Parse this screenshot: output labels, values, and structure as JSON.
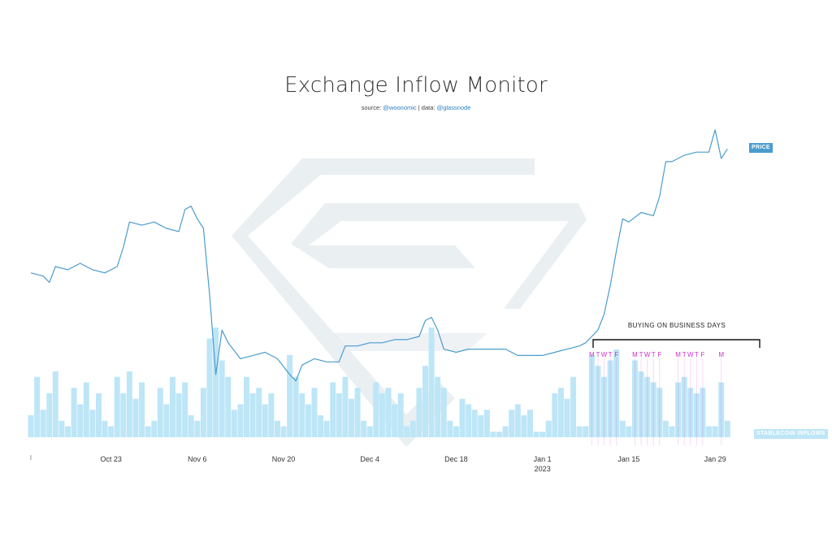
{
  "title": "Exchange Inflow Monitor",
  "source": {
    "prefix": "source: ",
    "author": "@woonomic",
    "separator": " | data: ",
    "data": "@glassnode"
  },
  "colors": {
    "price": "#4a9ccd",
    "inflows": "#bde6f7",
    "weekday_marker": "#cc33cc",
    "watermark": "#e3e9ee"
  },
  "badges": {
    "price": "PRICE",
    "stablecoin": "STABLECOIN INFLOWS"
  },
  "annotation": {
    "label": "BUYING ON BUSINESS DAYS"
  },
  "chart_data": {
    "type": "line",
    "title": "Exchange Inflow Monitor",
    "x_ticks": [
      "Oct 23",
      "Nov 6",
      "Nov 20",
      "Dec 4",
      "Dec 18",
      "Jan 1",
      "Jan 15",
      "Jan 29"
    ],
    "x_tick_year": {
      "tick": "Jan 1",
      "label": "2023"
    },
    "x_range": [
      "2022-10-10",
      "2023-02-03"
    ],
    "grid": false,
    "series": [
      {
        "name": "PRICE",
        "kind": "line",
        "axis": "hidden",
        "points": [
          [
            "2022-10-10",
            19200
          ],
          [
            "2022-10-12",
            19100
          ],
          [
            "2022-10-13",
            18900
          ],
          [
            "2022-10-14",
            19400
          ],
          [
            "2022-10-16",
            19300
          ],
          [
            "2022-10-18",
            19500
          ],
          [
            "2022-10-20",
            19300
          ],
          [
            "2022-10-22",
            19200
          ],
          [
            "2022-10-24",
            19400
          ],
          [
            "2022-10-25",
            20000
          ],
          [
            "2022-10-26",
            20800
          ],
          [
            "2022-10-28",
            20700
          ],
          [
            "2022-10-30",
            20800
          ],
          [
            "2022-11-01",
            20600
          ],
          [
            "2022-11-03",
            20500
          ],
          [
            "2022-11-04",
            21200
          ],
          [
            "2022-11-05",
            21300
          ],
          [
            "2022-11-06",
            20900
          ],
          [
            "2022-11-07",
            20600
          ],
          [
            "2022-11-08",
            18500
          ],
          [
            "2022-11-09",
            16000
          ],
          [
            "2022-11-10",
            17400
          ],
          [
            "2022-11-11",
            17000
          ],
          [
            "2022-11-13",
            16500
          ],
          [
            "2022-11-15",
            16600
          ],
          [
            "2022-11-17",
            16700
          ],
          [
            "2022-11-19",
            16500
          ],
          [
            "2022-11-21",
            16000
          ],
          [
            "2022-11-22",
            15800
          ],
          [
            "2022-11-23",
            16300
          ],
          [
            "2022-11-25",
            16500
          ],
          [
            "2022-11-27",
            16400
          ],
          [
            "2022-11-29",
            16400
          ],
          [
            "2022-11-30",
            16900
          ],
          [
            "2022-12-02",
            16900
          ],
          [
            "2022-12-04",
            17000
          ],
          [
            "2022-12-06",
            17000
          ],
          [
            "2022-12-08",
            17100
          ],
          [
            "2022-12-10",
            17100
          ],
          [
            "2022-12-12",
            17200
          ],
          [
            "2022-12-13",
            17700
          ],
          [
            "2022-12-14",
            17800
          ],
          [
            "2022-12-15",
            17400
          ],
          [
            "2022-12-16",
            16800
          ],
          [
            "2022-12-18",
            16700
          ],
          [
            "2022-12-20",
            16800
          ],
          [
            "2022-12-22",
            16800
          ],
          [
            "2022-12-24",
            16800
          ],
          [
            "2022-12-26",
            16800
          ],
          [
            "2022-12-28",
            16600
          ],
          [
            "2022-12-30",
            16600
          ],
          [
            "2023-01-01",
            16600
          ],
          [
            "2023-01-03",
            16700
          ],
          [
            "2023-01-05",
            16800
          ],
          [
            "2023-01-07",
            16900
          ],
          [
            "2023-01-08",
            17000
          ],
          [
            "2023-01-09",
            17200
          ],
          [
            "2023-01-10",
            17400
          ],
          [
            "2023-01-11",
            17900
          ],
          [
            "2023-01-12",
            18800
          ],
          [
            "2023-01-13",
            19900
          ],
          [
            "2023-01-14",
            20900
          ],
          [
            "2023-01-15",
            20800
          ],
          [
            "2023-01-17",
            21100
          ],
          [
            "2023-01-19",
            21000
          ],
          [
            "2023-01-20",
            21600
          ],
          [
            "2023-01-21",
            22700
          ],
          [
            "2023-01-22",
            22700
          ],
          [
            "2023-01-24",
            22900
          ],
          [
            "2023-01-26",
            23000
          ],
          [
            "2023-01-28",
            23000
          ],
          [
            "2023-01-29",
            23700
          ],
          [
            "2023-01-30",
            22800
          ],
          [
            "2023-01-31",
            23100
          ]
        ]
      },
      {
        "name": "STABLECOIN INFLOWS",
        "kind": "area",
        "axis": "hidden",
        "note": "daily bars, relative height 0-100",
        "points": [
          [
            "2022-10-10",
            20
          ],
          [
            "2022-10-11",
            55
          ],
          [
            "2022-10-12",
            25
          ],
          [
            "2022-10-13",
            40
          ],
          [
            "2022-10-14",
            60
          ],
          [
            "2022-10-15",
            15
          ],
          [
            "2022-10-16",
            10
          ],
          [
            "2022-10-17",
            45
          ],
          [
            "2022-10-18",
            30
          ],
          [
            "2022-10-19",
            50
          ],
          [
            "2022-10-20",
            25
          ],
          [
            "2022-10-21",
            40
          ],
          [
            "2022-10-22",
            15
          ],
          [
            "2022-10-23",
            10
          ],
          [
            "2022-10-24",
            55
          ],
          [
            "2022-10-25",
            40
          ],
          [
            "2022-10-26",
            60
          ],
          [
            "2022-10-27",
            35
          ],
          [
            "2022-10-28",
            50
          ],
          [
            "2022-10-29",
            10
          ],
          [
            "2022-10-30",
            15
          ],
          [
            "2022-10-31",
            45
          ],
          [
            "2022-11-01",
            30
          ],
          [
            "2022-11-02",
            55
          ],
          [
            "2022-11-03",
            40
          ],
          [
            "2022-11-04",
            50
          ],
          [
            "2022-11-05",
            20
          ],
          [
            "2022-11-06",
            15
          ],
          [
            "2022-11-07",
            45
          ],
          [
            "2022-11-08",
            90
          ],
          [
            "2022-11-09",
            100
          ],
          [
            "2022-11-10",
            70
          ],
          [
            "2022-11-11",
            55
          ],
          [
            "2022-11-12",
            25
          ],
          [
            "2022-11-13",
            30
          ],
          [
            "2022-11-14",
            55
          ],
          [
            "2022-11-15",
            40
          ],
          [
            "2022-11-16",
            45
          ],
          [
            "2022-11-17",
            30
          ],
          [
            "2022-11-18",
            40
          ],
          [
            "2022-11-19",
            15
          ],
          [
            "2022-11-20",
            10
          ],
          [
            "2022-11-21",
            75
          ],
          [
            "2022-11-22",
            55
          ],
          [
            "2022-11-23",
            40
          ],
          [
            "2022-11-24",
            30
          ],
          [
            "2022-11-25",
            45
          ],
          [
            "2022-11-26",
            20
          ],
          [
            "2022-11-27",
            15
          ],
          [
            "2022-11-28",
            50
          ],
          [
            "2022-11-29",
            40
          ],
          [
            "2022-11-30",
            55
          ],
          [
            "2022-12-01",
            35
          ],
          [
            "2022-12-02",
            45
          ],
          [
            "2022-12-03",
            15
          ],
          [
            "2022-12-04",
            10
          ],
          [
            "2022-12-05",
            50
          ],
          [
            "2022-12-06",
            40
          ],
          [
            "2022-12-07",
            45
          ],
          [
            "2022-12-08",
            30
          ],
          [
            "2022-12-09",
            40
          ],
          [
            "2022-12-10",
            10
          ],
          [
            "2022-12-11",
            15
          ],
          [
            "2022-12-12",
            45
          ],
          [
            "2022-12-13",
            65
          ],
          [
            "2022-12-14",
            100
          ],
          [
            "2022-12-15",
            55
          ],
          [
            "2022-12-16",
            45
          ],
          [
            "2022-12-17",
            15
          ],
          [
            "2022-12-18",
            10
          ],
          [
            "2022-12-19",
            35
          ],
          [
            "2022-12-20",
            30
          ],
          [
            "2022-12-21",
            25
          ],
          [
            "2022-12-22",
            20
          ],
          [
            "2022-12-23",
            25
          ],
          [
            "2022-12-24",
            5
          ],
          [
            "2022-12-25",
            5
          ],
          [
            "2022-12-26",
            10
          ],
          [
            "2022-12-27",
            25
          ],
          [
            "2022-12-28",
            30
          ],
          [
            "2022-12-29",
            20
          ],
          [
            "2022-12-30",
            25
          ],
          [
            "2022-12-31",
            5
          ],
          [
            "2023-01-01",
            5
          ],
          [
            "2023-01-02",
            15
          ],
          [
            "2023-01-03",
            40
          ],
          [
            "2023-01-04",
            45
          ],
          [
            "2023-01-05",
            35
          ],
          [
            "2023-01-06",
            55
          ],
          [
            "2023-01-07",
            10
          ],
          [
            "2023-01-08",
            10
          ],
          [
            "2023-01-09",
            75
          ],
          [
            "2023-01-10",
            65
          ],
          [
            "2023-01-11",
            55
          ],
          [
            "2023-01-12",
            70
          ],
          [
            "2023-01-13",
            80
          ],
          [
            "2023-01-14",
            15
          ],
          [
            "2023-01-15",
            10
          ],
          [
            "2023-01-16",
            70
          ],
          [
            "2023-01-17",
            60
          ],
          [
            "2023-01-18",
            55
          ],
          [
            "2023-01-19",
            50
          ],
          [
            "2023-01-20",
            45
          ],
          [
            "2023-01-21",
            15
          ],
          [
            "2023-01-22",
            10
          ],
          [
            "2023-01-23",
            50
          ],
          [
            "2023-01-24",
            55
          ],
          [
            "2023-01-25",
            45
          ],
          [
            "2023-01-26",
            40
          ],
          [
            "2023-01-27",
            45
          ],
          [
            "2023-01-28",
            10
          ],
          [
            "2023-01-29",
            10
          ],
          [
            "2023-01-30",
            50
          ],
          [
            "2023-01-31",
            15
          ]
        ]
      }
    ],
    "weekday_markers": {
      "label": "BUYING ON BUSINESS DAYS",
      "groups": [
        {
          "days": [
            [
              "M",
              "2023-01-09"
            ],
            [
              "T",
              "2023-01-10"
            ],
            [
              "W",
              "2023-01-11"
            ],
            [
              "T",
              "2023-01-12"
            ],
            [
              "F",
              "2023-01-13"
            ]
          ]
        },
        {
          "days": [
            [
              "M",
              "2023-01-16"
            ],
            [
              "T",
              "2023-01-17"
            ],
            [
              "W",
              "2023-01-18"
            ],
            [
              "T",
              "2023-01-19"
            ],
            [
              "F",
              "2023-01-20"
            ]
          ]
        },
        {
          "days": [
            [
              "M",
              "2023-01-23"
            ],
            [
              "T",
              "2023-01-24"
            ],
            [
              "W",
              "2023-01-25"
            ],
            [
              "T",
              "2023-01-26"
            ],
            [
              "F",
              "2023-01-27"
            ]
          ]
        },
        {
          "days": [
            [
              "M",
              "2023-01-30"
            ]
          ]
        }
      ]
    }
  }
}
